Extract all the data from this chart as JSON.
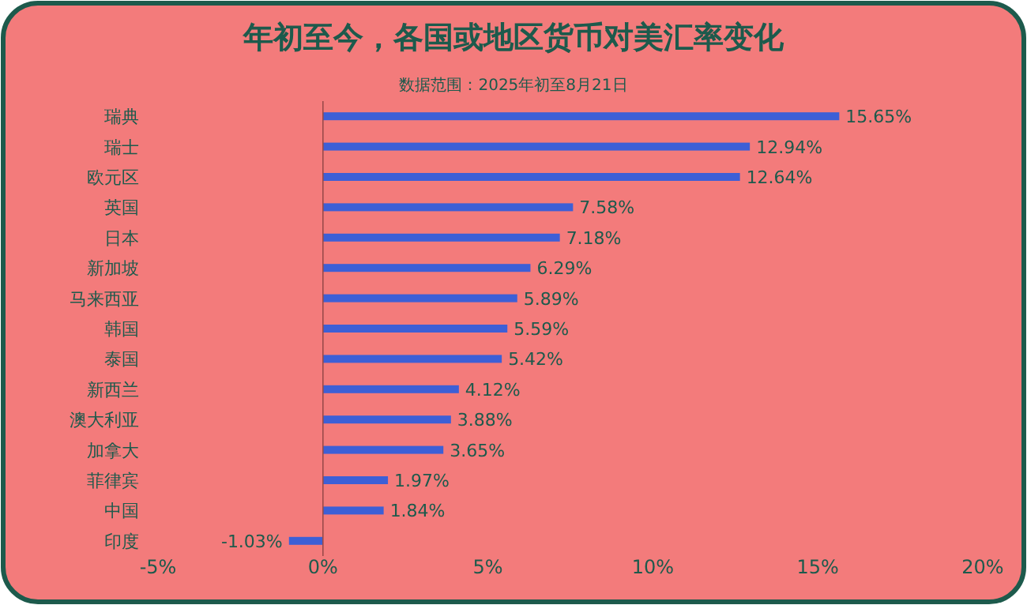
{
  "chart_data": {
    "type": "bar",
    "orientation": "horizontal",
    "title": "年初至今，各国或地区货币对美汇率变化",
    "subtitle": "数据范围：2025年初至8月21日",
    "categories": [
      "瑞典",
      "瑞士",
      "欧元区",
      "英国",
      "日本",
      "新加坡",
      "马来西亚",
      "韩国",
      "泰国",
      "新西兰",
      "澳大利亚",
      "加拿大",
      "菲律宾",
      "中国",
      "印度"
    ],
    "values": [
      15.65,
      12.94,
      12.64,
      7.58,
      7.18,
      6.29,
      5.89,
      5.59,
      5.42,
      4.12,
      3.88,
      3.65,
      1.97,
      1.84,
      -1.03
    ],
    "value_labels": [
      "15.65%",
      "12.94%",
      "12.64%",
      "7.58%",
      "7.18%",
      "6.29%",
      "5.89%",
      "5.59%",
      "5.42%",
      "4.12%",
      "3.88%",
      "3.65%",
      "1.97%",
      "1.84%",
      "-1.03%"
    ],
    "color": "#3d5fd6",
    "xlim": [
      -5,
      20
    ],
    "xticks": [
      {
        "value": -5,
        "label": "-5%"
      },
      {
        "value": 0,
        "label": "0%"
      },
      {
        "value": 5,
        "label": "5%"
      },
      {
        "value": 10,
        "label": "10%"
      },
      {
        "value": 15,
        "label": "15%"
      },
      {
        "value": 20,
        "label": "20%"
      }
    ],
    "ref_lines": [
      {
        "axis": "x",
        "value": 0,
        "color": "#9a4a4a"
      }
    ],
    "grid": false
  }
}
